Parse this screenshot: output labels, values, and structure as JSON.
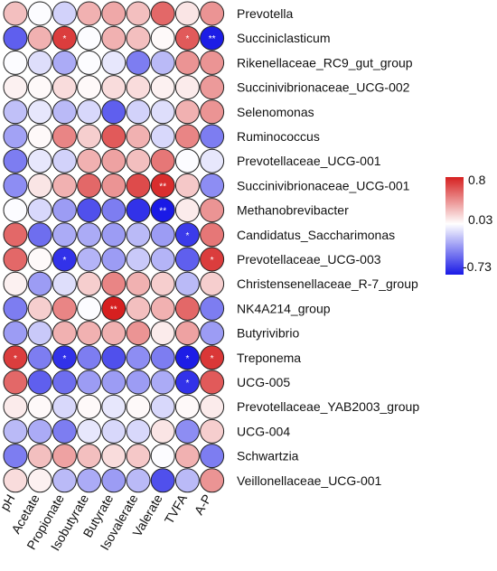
{
  "chart_data": {
    "type": "heatmap",
    "style": "correlation circle plot",
    "rows": [
      "Prevotella",
      "Succiniclasticum",
      "Rikenellaceae_RC9_gut_group",
      "Succinivibrionaceae_UCG-002",
      "Selenomonas",
      "Ruminococcus",
      "Prevotellaceae_UCG-001",
      "Succinivibrionaceae_UCG-001",
      "Methanobrevibacter",
      "Candidatus_Saccharimonas",
      "Prevotellaceae_UCG-003",
      "Christensenellaceae_R-7_group",
      "NK4A214_group",
      "Butyrivibrio",
      "Treponema",
      "UCG-005",
      "Prevotellaceae_YAB2003_group",
      "UCG-004",
      "Schwartzia",
      "Veillonellaceae_UCG-001"
    ],
    "columns": [
      "pH",
      "Acetate",
      "Propionate",
      "Isobutyrate",
      "Butyrate",
      "Isovalerate",
      "Valerate",
      "TVFA",
      "A-P"
    ],
    "values": [
      [
        0.25,
        0.02,
        -0.12,
        0.3,
        0.33,
        0.25,
        0.55,
        0.12,
        0.4
      ],
      [
        -0.5,
        0.3,
        0.7,
        0.02,
        0.3,
        0.25,
        0.05,
        0.6,
        -0.72
      ],
      [
        0.02,
        -0.08,
        -0.25,
        0.02,
        -0.05,
        -0.4,
        -0.2,
        0.4,
        0.4
      ],
      [
        0.08,
        0.05,
        0.15,
        0.05,
        0.15,
        0.15,
        0.08,
        0.1,
        0.38
      ],
      [
        -0.18,
        -0.05,
        -0.2,
        -0.1,
        -0.5,
        -0.12,
        -0.08,
        0.3,
        0.4
      ],
      [
        -0.28,
        0.05,
        0.45,
        0.2,
        0.6,
        0.3,
        -0.1,
        0.45,
        -0.4
      ],
      [
        -0.4,
        -0.05,
        -0.12,
        0.3,
        0.35,
        0.25,
        0.5,
        0.02,
        -0.05
      ],
      [
        -0.35,
        0.12,
        0.3,
        0.55,
        0.4,
        0.65,
        0.75,
        0.22,
        -0.35
      ],
      [
        0.02,
        -0.1,
        -0.3,
        -0.55,
        -0.4,
        -0.65,
        -0.73,
        0.1,
        0.4
      ],
      [
        0.55,
        -0.45,
        -0.25,
        -0.25,
        -0.3,
        -0.2,
        -0.3,
        -0.62,
        0.5
      ],
      [
        0.55,
        0.05,
        -0.65,
        -0.22,
        -0.3,
        -0.15,
        -0.22,
        -0.5,
        0.7
      ],
      [
        0.08,
        -0.3,
        -0.08,
        0.2,
        0.45,
        0.3,
        0.2,
        -0.2,
        0.2
      ],
      [
        -0.4,
        0.2,
        0.45,
        0.02,
        0.8,
        0.25,
        0.3,
        0.55,
        -0.4
      ],
      [
        -0.3,
        -0.15,
        0.3,
        0.3,
        0.3,
        0.4,
        0.1,
        0.35,
        -0.3
      ],
      [
        0.7,
        -0.4,
        -0.65,
        -0.4,
        -0.55,
        -0.35,
        -0.4,
        -0.72,
        0.72
      ],
      [
        0.55,
        -0.5,
        -0.45,
        -0.3,
        -0.3,
        -0.3,
        -0.25,
        -0.65,
        0.6
      ],
      [
        0.1,
        0.05,
        -0.1,
        0.05,
        -0.05,
        0.05,
        -0.1,
        0.05,
        0.1
      ],
      [
        -0.2,
        -0.25,
        -0.4,
        -0.05,
        -0.1,
        -0.1,
        0.12,
        -0.35,
        0.2
      ],
      [
        -0.4,
        0.25,
        0.35,
        0.25,
        0.15,
        0.22,
        0.02,
        0.3,
        -0.4
      ],
      [
        0.15,
        0.08,
        -0.2,
        -0.25,
        -0.3,
        -0.2,
        -0.55,
        -0.2,
        0.4
      ]
    ],
    "significance": [
      [
        "",
        "",
        "",
        "",
        "",
        "",
        "",
        "",
        ""
      ],
      [
        "",
        "",
        "*",
        "",
        "",
        "",
        "",
        "*",
        "**"
      ],
      [
        "",
        "",
        "",
        "",
        "",
        "",
        "",
        "",
        ""
      ],
      [
        "",
        "",
        "",
        "",
        "",
        "",
        "",
        "",
        ""
      ],
      [
        "",
        "",
        "",
        "",
        "",
        "",
        "",
        "",
        ""
      ],
      [
        "",
        "",
        "",
        "",
        "",
        "",
        "",
        "",
        ""
      ],
      [
        "",
        "",
        "",
        "",
        "",
        "",
        "",
        "",
        ""
      ],
      [
        "",
        "",
        "",
        "",
        "",
        "",
        "**",
        "",
        ""
      ],
      [
        "",
        "",
        "",
        "",
        "",
        "",
        "**",
        "",
        ""
      ],
      [
        "",
        "",
        "",
        "",
        "",
        "",
        "",
        "*",
        ""
      ],
      [
        "",
        "",
        "*",
        "",
        "",
        "",
        "",
        "",
        "*"
      ],
      [
        "",
        "",
        "",
        "",
        "",
        "",
        "",
        "",
        ""
      ],
      [
        "",
        "",
        "",
        "",
        "**",
        "",
        "",
        "",
        ""
      ],
      [
        "",
        "",
        "",
        "",
        "",
        "",
        "",
        "",
        ""
      ],
      [
        "*",
        "",
        "*",
        "",
        "",
        "",
        "",
        "*",
        "*"
      ],
      [
        "",
        "",
        "",
        "",
        "",
        "",
        "",
        "*",
        ""
      ],
      [
        "",
        "",
        "",
        "",
        "",
        "",
        "",
        "",
        ""
      ],
      [
        "",
        "",
        "",
        "",
        "",
        "",
        "",
        "",
        ""
      ],
      [
        "",
        "",
        "",
        "",
        "",
        "",
        "",
        "",
        ""
      ],
      [
        "",
        "",
        "",
        "",
        "",
        "",
        "",
        "",
        ""
      ]
    ],
    "color_scale": {
      "min": -0.73,
      "mid": 0.03,
      "max": 0.8,
      "low_color": "#1a1ae6",
      "mid_color": "#ffffff",
      "high_color": "#d62020",
      "tick_labels": [
        "0.8",
        "0.03",
        "-0.73"
      ]
    },
    "legend_placement": "right",
    "grid": false
  }
}
